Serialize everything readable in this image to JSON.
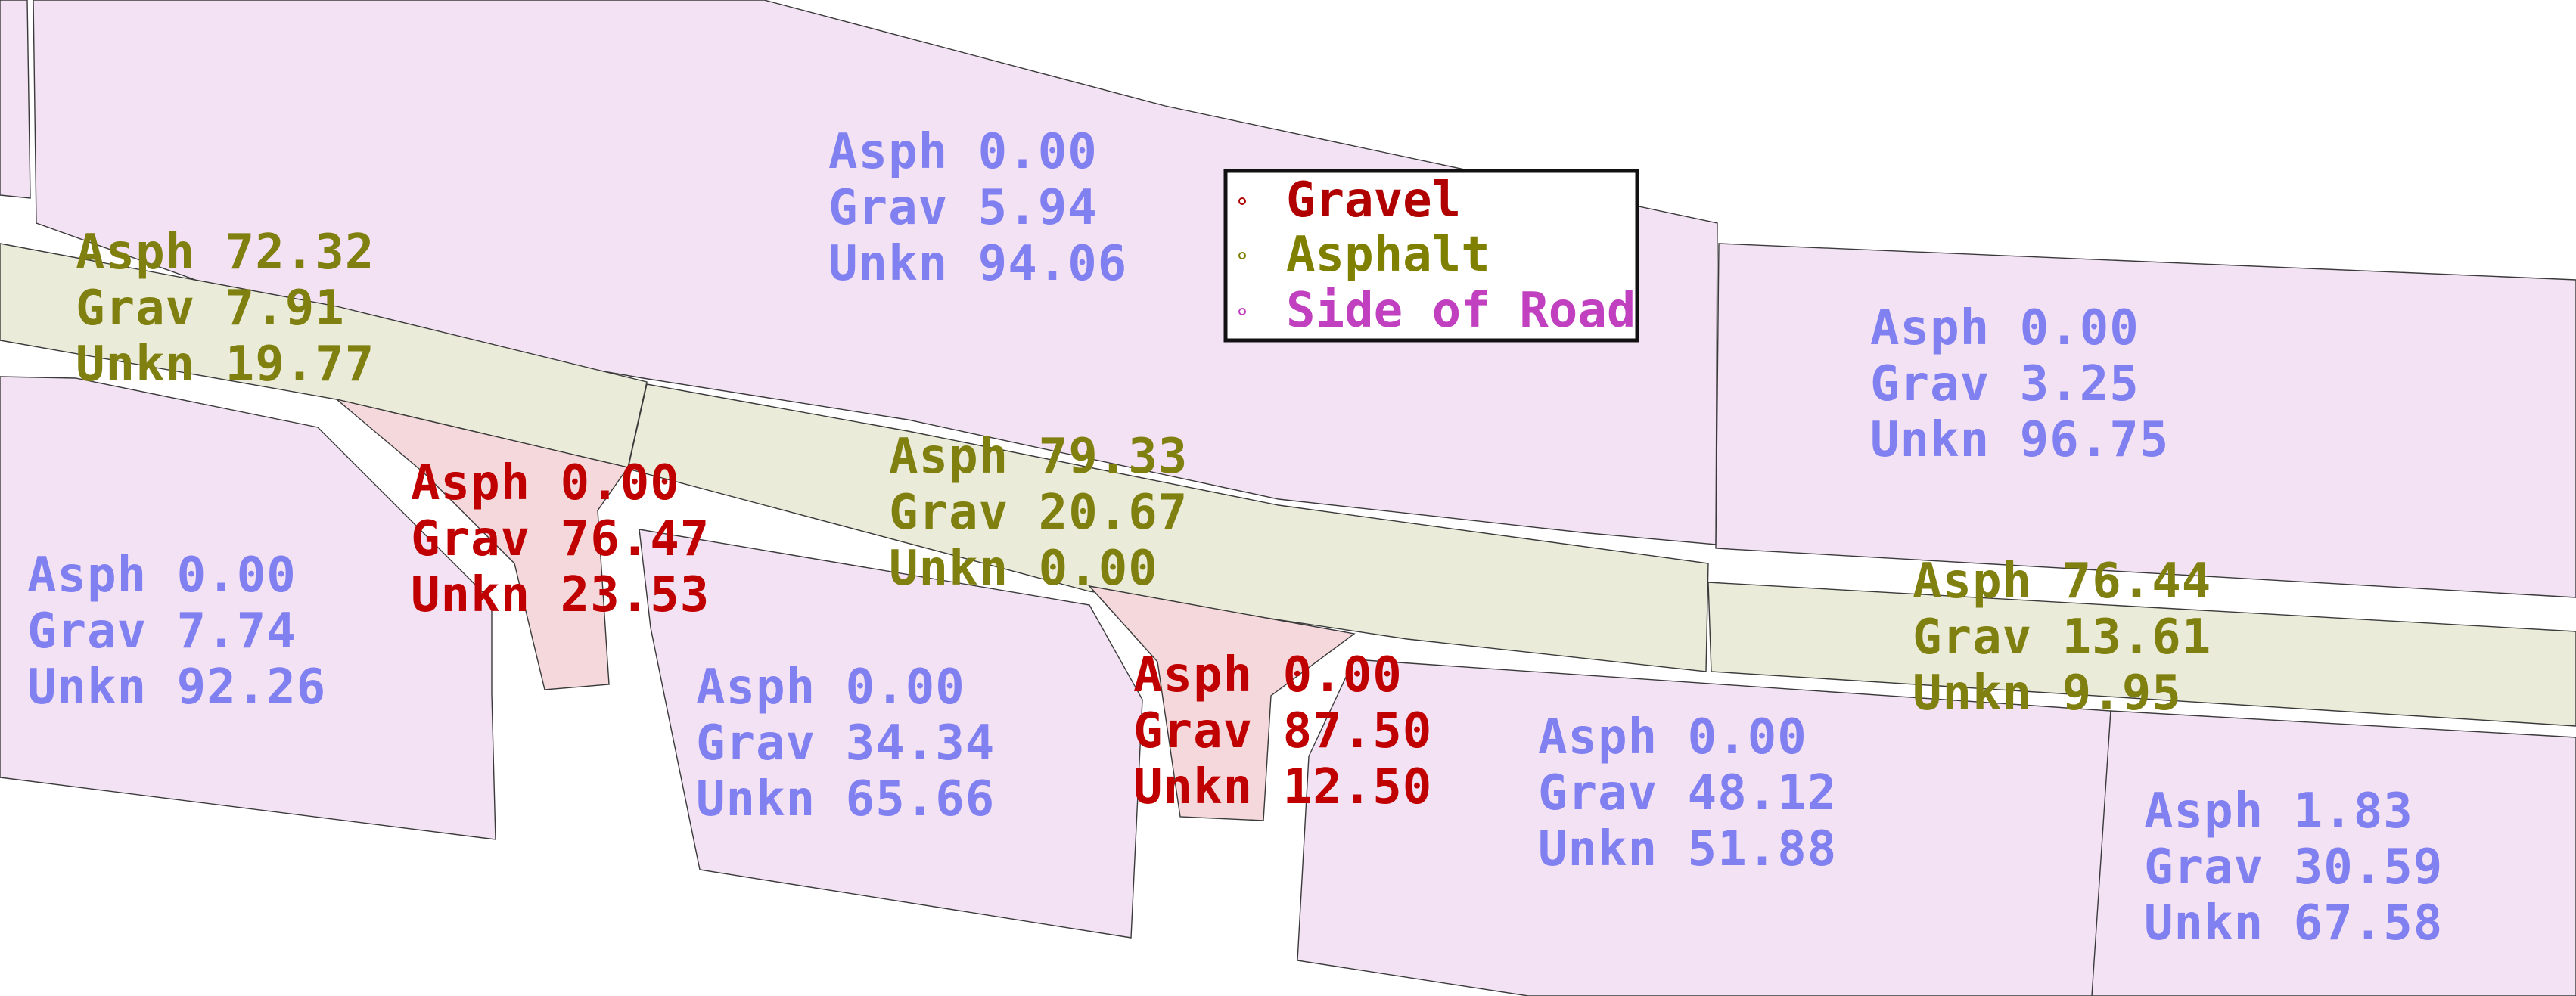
{
  "colors": {
    "side_of_road_text": "#8080f0",
    "asphalt_text": "#808010",
    "gravel_text": "#c00000",
    "side_of_road_fill": "#f3e1f4",
    "asphalt_fill": "#ebebd9",
    "gravel_fill": "#f5d8dc",
    "legend_gravel": "#b00000",
    "legend_asphalt": "#808000",
    "legend_side": "#c040c0"
  },
  "legend": {
    "items": [
      {
        "key": "gravel",
        "label": "Gravel",
        "marker": "circle-marker-icon"
      },
      {
        "key": "asphalt",
        "label": "Asphalt",
        "marker": "circle-marker-icon"
      },
      {
        "key": "side",
        "label": "Side of Road",
        "marker": "circle-marker-icon"
      }
    ]
  },
  "regions": [
    {
      "id": "side-top-center",
      "class": "side",
      "lines": [
        "Asph 0.00",
        "Grav 5.94",
        "Unkn 94.06"
      ]
    },
    {
      "id": "asph-left",
      "class": "asphalt",
      "lines": [
        "Asph 72.32",
        "Grav 7.91",
        "Unkn 19.77"
      ]
    },
    {
      "id": "side-top-right",
      "class": "side",
      "lines": [
        "Asph 0.00",
        "Grav 3.25",
        "Unkn 96.75"
      ]
    },
    {
      "id": "grav-left",
      "class": "gravel",
      "lines": [
        "Asph 0.00",
        "Grav 76.47",
        "Unkn 23.53"
      ]
    },
    {
      "id": "asph-center",
      "class": "asphalt",
      "lines": [
        "Asph 79.33",
        "Grav 20.67",
        "Unkn 0.00"
      ]
    },
    {
      "id": "side-left",
      "class": "side",
      "lines": [
        "Asph 0.00",
        "Grav 7.74",
        "Unkn 92.26"
      ]
    },
    {
      "id": "asph-right",
      "class": "asphalt",
      "lines": [
        "Asph 76.44",
        "Grav 13.61",
        "Unkn 9.95"
      ]
    },
    {
      "id": "side-center-left",
      "class": "side",
      "lines": [
        "Asph 0.00",
        "Grav 34.34",
        "Unkn 65.66"
      ]
    },
    {
      "id": "grav-center",
      "class": "gravel",
      "lines": [
        "Asph 0.00",
        "Grav 87.50",
        "Unkn 12.50"
      ]
    },
    {
      "id": "side-center-right",
      "class": "side",
      "lines": [
        "Asph 0.00",
        "Grav 48.12",
        "Unkn 51.88"
      ]
    },
    {
      "id": "side-bottom-right",
      "class": "side",
      "lines": [
        "Asph 1.83",
        "Grav 30.59",
        "Unkn 67.58"
      ]
    }
  ]
}
